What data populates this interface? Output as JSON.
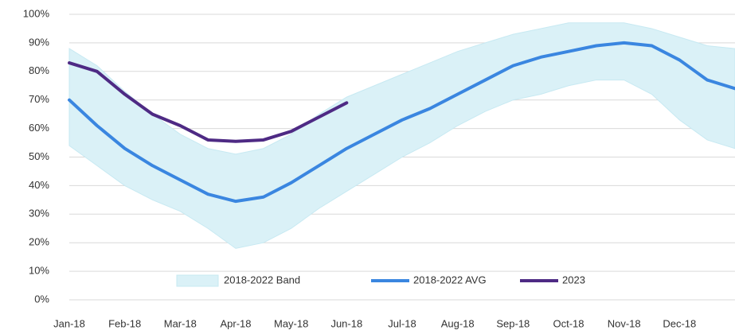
{
  "chart_data": {
    "type": "line",
    "categories": [
      "Jan-18",
      null,
      "Feb-18",
      null,
      "Mar-18",
      null,
      "Apr-18",
      null,
      "May-18",
      null,
      "Jun-18",
      null,
      "Jul-18",
      null,
      "Aug-18",
      null,
      "Sep-18",
      null,
      "Oct-18",
      null,
      "Nov-18",
      null,
      "Dec-18",
      null,
      null
    ],
    "series": [
      {
        "name": "2018-2022 Band",
        "kind": "band",
        "color": "#daf1f7",
        "upper": [
          88,
          82,
          73,
          65,
          58,
          53,
          51,
          53,
          58,
          65,
          71,
          75,
          79,
          83,
          87,
          90,
          93,
          95,
          97,
          97,
          97,
          95,
          92,
          89,
          88
        ],
        "lower": [
          54,
          47,
          40,
          35,
          31,
          25,
          18,
          20,
          25,
          32,
          38,
          44,
          50,
          55,
          61,
          66,
          70,
          72,
          75,
          77,
          77,
          72,
          63,
          56,
          53
        ]
      },
      {
        "name": "2018-2022 AVG",
        "color": "#3a86e0",
        "values": [
          70,
          61,
          53,
          47,
          42,
          37,
          34.5,
          36,
          41,
          47,
          53,
          58,
          63,
          67,
          72,
          77,
          82,
          85,
          87,
          89,
          90,
          89,
          84,
          77,
          74
        ]
      },
      {
        "name": "2023",
        "color": "#4e2a84",
        "values": [
          83,
          80,
          72,
          65,
          61,
          56,
          55.5,
          56,
          59,
          64,
          69,
          null,
          null,
          null,
          null,
          null,
          null,
          null,
          null,
          null,
          null,
          null,
          null,
          null,
          null
        ]
      }
    ],
    "ylim": [
      0,
      100
    ],
    "yticks": [
      {
        "value": 0,
        "label": "0%"
      },
      {
        "value": 10,
        "label": "10%"
      },
      {
        "value": 20,
        "label": "20%"
      },
      {
        "value": 30,
        "label": "30%"
      },
      {
        "value": 40,
        "label": "40%"
      },
      {
        "value": 50,
        "label": "50%"
      },
      {
        "value": 60,
        "label": "60%"
      },
      {
        "value": 70,
        "label": "70%"
      },
      {
        "value": 80,
        "label": "80%"
      },
      {
        "value": 90,
        "label": "90%"
      },
      {
        "value": 100,
        "label": "100%"
      }
    ],
    "grid": true,
    "legend": "bottom"
  }
}
